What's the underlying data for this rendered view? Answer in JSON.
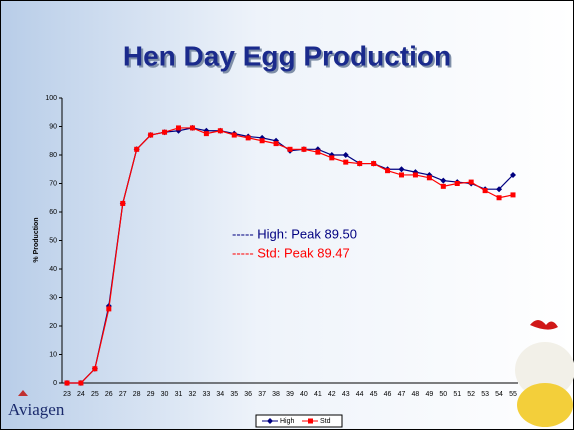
{
  "chart_data": {
    "type": "line",
    "title": "Hen Day Egg Production",
    "y_label": "% Production",
    "categories": [
      23,
      24,
      25,
      26,
      27,
      28,
      29,
      30,
      31,
      32,
      33,
      34,
      35,
      36,
      37,
      38,
      39,
      40,
      41,
      42,
      43,
      44,
      45,
      46,
      47,
      48,
      49,
      50,
      51,
      52,
      53,
      54,
      55
    ],
    "series": [
      {
        "name": "High",
        "color": "#000080",
        "marker": "diamond",
        "values": [
          0,
          0,
          5,
          27,
          63,
          82,
          87,
          88,
          88.5,
          89.5,
          88.5,
          88.5,
          87.5,
          86.5,
          86,
          85,
          81.5,
          82,
          82,
          80,
          80,
          77,
          77,
          75,
          75,
          74,
          73,
          71,
          70.5,
          70,
          68,
          68,
          73
        ]
      },
      {
        "name": "Std",
        "color": "#ff0000",
        "marker": "square",
        "values": [
          0,
          0,
          5,
          26,
          63,
          82,
          87,
          88,
          89.5,
          89.5,
          87.5,
          88.5,
          87,
          86,
          85,
          84,
          82,
          82,
          81,
          79,
          77.5,
          77,
          77,
          74.5,
          73,
          73,
          72,
          69,
          70,
          70.5,
          67.5,
          65,
          66
        ]
      }
    ],
    "annotations": [
      {
        "text": "----- High: Peak 89.50",
        "series": 0
      },
      {
        "text": "----- Std: Peak 89.47",
        "series": 1
      }
    ],
    "ylim": [
      0,
      100
    ],
    "yticks": [
      0,
      10,
      20,
      30,
      40,
      50,
      60,
      70,
      80,
      90,
      100
    ],
    "legend": "bottom"
  },
  "logo": "Aviagen"
}
